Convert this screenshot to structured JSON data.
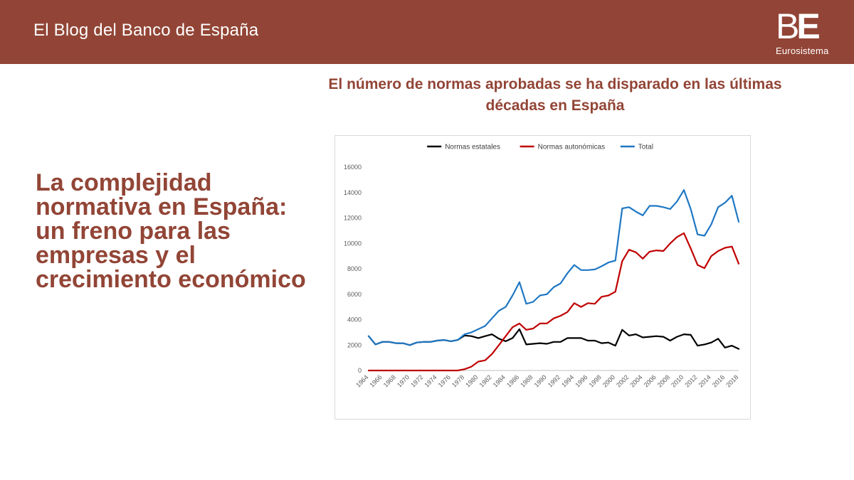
{
  "header": {
    "blog_title": "El Blog del Banco de España",
    "logo_mark_b": "B",
    "logo_mark_e": "E",
    "logo_sub": "Eurosistema",
    "bg_color": "#924536"
  },
  "headline": "La complejidad normativa en España: un freno para las empresas y el crecimiento económico",
  "chart_data": {
    "type": "line",
    "title": "El número de normas aprobadas se ha disparado en las últimas décadas en España",
    "xlabel": "",
    "ylabel": "",
    "ylim": [
      0,
      16000
    ],
    "yticks": [
      0,
      2000,
      4000,
      6000,
      8000,
      10000,
      12000,
      14000,
      16000
    ],
    "x": [
      1964,
      1965,
      1966,
      1967,
      1968,
      1969,
      1970,
      1971,
      1972,
      1973,
      1974,
      1975,
      1976,
      1977,
      1978,
      1979,
      1980,
      1981,
      1982,
      1983,
      1984,
      1985,
      1986,
      1987,
      1988,
      1989,
      1990,
      1991,
      1992,
      1993,
      1994,
      1995,
      1996,
      1997,
      1998,
      1999,
      2000,
      2001,
      2002,
      2003,
      2004,
      2005,
      2006,
      2007,
      2008,
      2009,
      2010,
      2011,
      2012,
      2013,
      2014,
      2015,
      2016,
      2017,
      2018
    ],
    "xticks": [
      "1964",
      "1966",
      "1968",
      "1970",
      "1972",
      "1974",
      "1976",
      "1978",
      "1980",
      "1982",
      "1984",
      "1986",
      "1988",
      "1990",
      "1992",
      "1994",
      "1996",
      "1998",
      "2000",
      "2002",
      "2004",
      "2006",
      "2008",
      "2010",
      "2012",
      "2014",
      "2016",
      "2018"
    ],
    "grid": false,
    "legend_position": "top",
    "series": [
      {
        "name": "Normas estatales",
        "color": "#000000",
        "values": [
          2700,
          2050,
          2250,
          2250,
          2150,
          2150,
          2000,
          2200,
          2250,
          2250,
          2350,
          2400,
          2300,
          2400,
          2750,
          2700,
          2550,
          2700,
          2850,
          2500,
          2300,
          2550,
          3250,
          2050,
          2100,
          2150,
          2100,
          2250,
          2250,
          2550,
          2550,
          2550,
          2350,
          2350,
          2150,
          2200,
          1950,
          3200,
          2750,
          2850,
          2600,
          2650,
          2700,
          2650,
          2350,
          2650,
          2850,
          2800,
          1950,
          2050,
          2200,
          2500,
          1800,
          1950,
          1700
        ]
      },
      {
        "name": "Normas autonómicas",
        "color": "#c00000",
        "values": [
          0,
          0,
          0,
          0,
          0,
          0,
          0,
          0,
          0,
          0,
          0,
          0,
          0,
          0,
          100,
          300,
          700,
          800,
          1300,
          2000,
          2700,
          3400,
          3700,
          3200,
          3300,
          3700,
          3700,
          4100,
          4300,
          4600,
          5300,
          5000,
          5300,
          5250,
          5800,
          5900,
          6200,
          8600,
          9500,
          9300,
          8800,
          9350,
          9450,
          9400,
          10000,
          10500,
          10800,
          9600,
          8300,
          8050,
          9000,
          9400,
          9650,
          9750,
          8400
        ]
      },
      {
        "name": "Total",
        "color": "#1f77c4",
        "values": [
          2700,
          2050,
          2250,
          2250,
          2150,
          2150,
          2000,
          2200,
          2250,
          2250,
          2350,
          2400,
          2300,
          2400,
          2850,
          3000,
          3250,
          3500,
          4100,
          4700,
          5000,
          5900,
          6950,
          5250,
          5400,
          5900,
          6000,
          6550,
          6850,
          7650,
          8300,
          7900,
          7900,
          7950,
          8200,
          8500,
          8650,
          12750,
          12850,
          12500,
          12200,
          12950,
          12950,
          12850,
          12700,
          13300,
          14200,
          12700,
          10700,
          10600,
          11500,
          12850,
          13200,
          13750,
          11700
        ]
      }
    ]
  }
}
